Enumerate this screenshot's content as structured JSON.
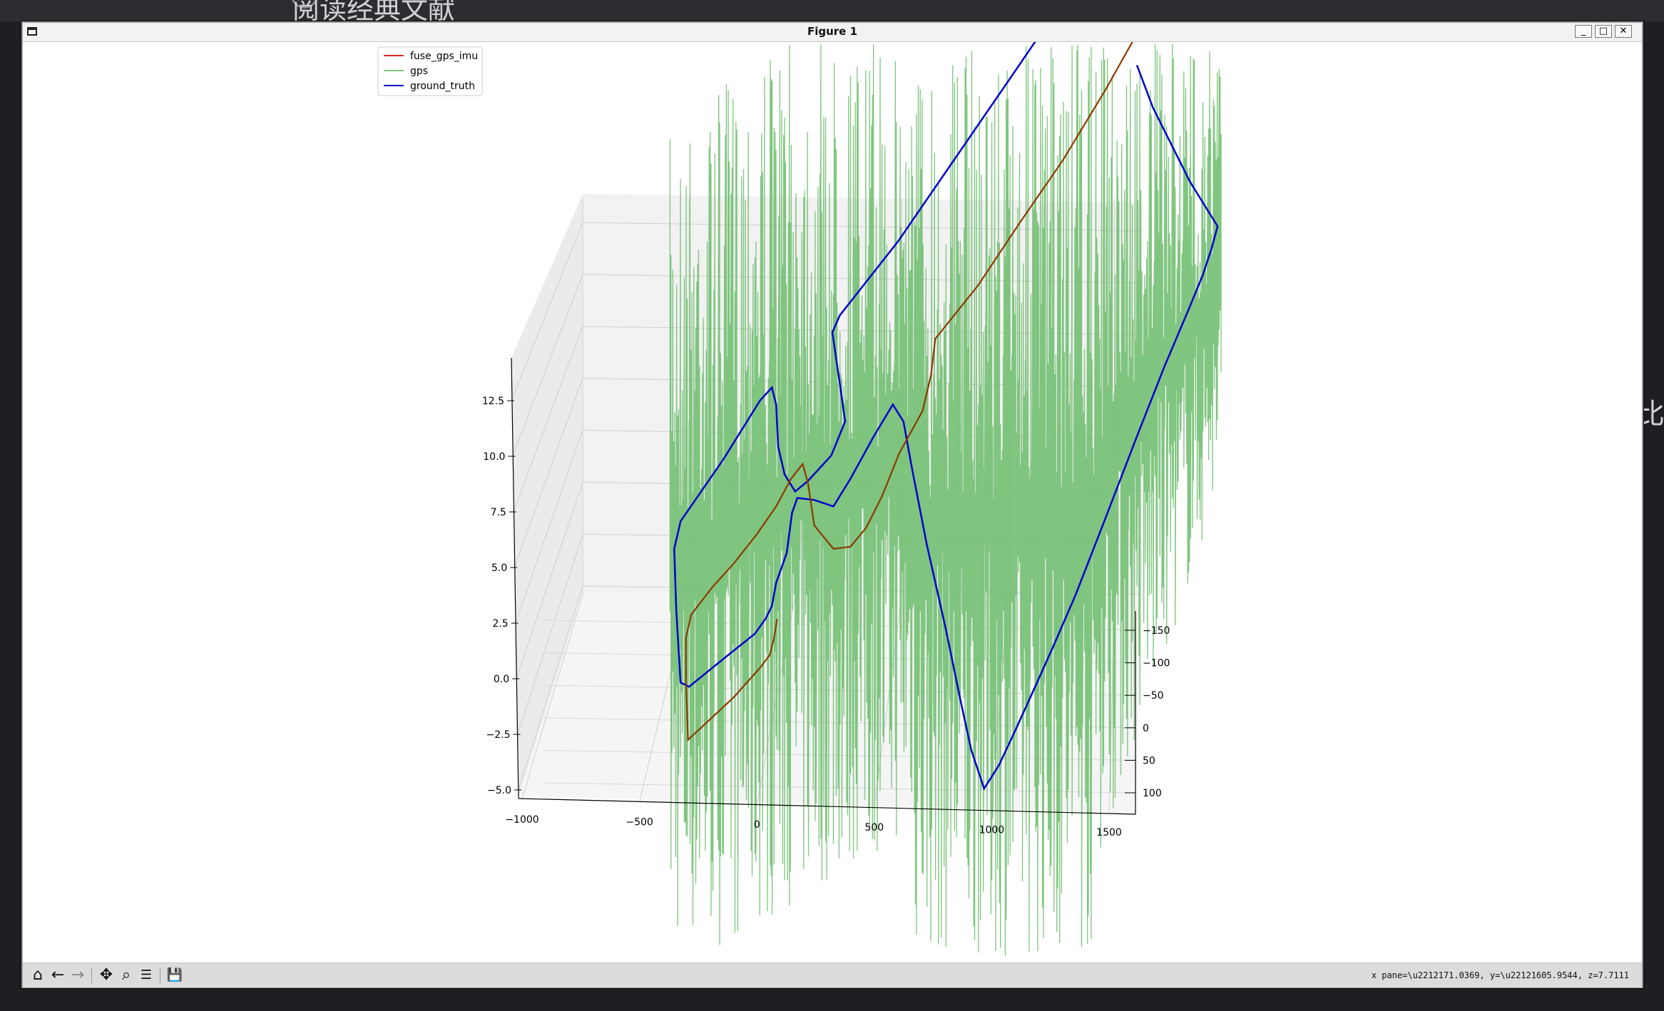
{
  "window": {
    "title": "Figure 1",
    "minimize_label": "_",
    "maximize_label": "□",
    "close_label": "✕"
  },
  "background": {
    "heading_text": "阅读经典文献",
    "side_text": "比"
  },
  "toolbar": {
    "home_icon": "⌂",
    "back_icon": "←",
    "forward_icon": "→",
    "pan_icon": "✥",
    "zoom_icon": "⌕",
    "config_icon": "☰",
    "save_icon": "💾",
    "coords_text": "x pane=\\u2212171.0369, y=\\u22121605.9544, z=7.7111"
  },
  "chart_data": {
    "type": "line",
    "projection": "3d",
    "legend": {
      "placement": "top-left",
      "entries": [
        {
          "name": "fuse_gps_imu",
          "color": "#d62728"
        },
        {
          "name": "gps",
          "color": "#4caf50"
        },
        {
          "name": "ground_truth",
          "color": "#0000cc"
        }
      ]
    },
    "axes": {
      "x_ticks": [
        "−1000",
        "−500",
        "0",
        "500",
        "1000",
        "1500"
      ],
      "y_ticks": [
        "−150",
        "−100",
        "−50",
        "0",
        "50",
        "100"
      ],
      "z_ticks": [
        "−5.0",
        "−2.5",
        "0.0",
        "2.5",
        "5.0",
        "7.5",
        "10.0",
        "12.5"
      ],
      "xlim": [
        -1000,
        1500
      ],
      "ylim": [
        -150,
        100
      ],
      "zlim": [
        -5,
        12.5
      ],
      "grid": true
    },
    "series": [
      {
        "name": "ground_truth",
        "color": "#0000cc",
        "path": [
          [
            1068,
            -180
          ],
          [
            1000,
            0
          ],
          [
            955,
            66
          ],
          [
            845,
            226
          ],
          [
            790,
            296
          ],
          [
            783,
            312
          ],
          [
            790,
            360
          ],
          [
            795,
            396
          ],
          [
            782,
            428
          ],
          [
            760,
            452
          ],
          [
            748,
            462
          ],
          [
            738,
            446
          ],
          [
            732,
            420
          ],
          [
            730,
            380
          ],
          [
            726,
            364
          ],
          [
            715,
            376
          ],
          [
            680,
            432
          ],
          [
            640,
            490
          ],
          [
            634,
            516
          ],
          [
            636,
            576
          ],
          [
            640,
            642
          ],
          [
            648,
            646
          ],
          [
            680,
            620
          ],
          [
            710,
            596
          ],
          [
            720,
            582
          ],
          [
            726,
            570
          ],
          [
            730,
            548
          ],
          [
            740,
            520
          ],
          [
            745,
            482
          ],
          [
            750,
            468
          ],
          [
            766,
            470
          ],
          [
            784,
            476
          ],
          [
            800,
            450
          ],
          [
            822,
            410
          ],
          [
            840,
            380
          ],
          [
            850,
            396
          ],
          [
            858,
            440
          ],
          [
            872,
            512
          ],
          [
            890,
            592
          ],
          [
            904,
            660
          ],
          [
            914,
            706
          ],
          [
            926,
            742
          ],
          [
            940,
            720
          ],
          [
            955,
            688
          ],
          [
            975,
            644
          ],
          [
            992,
            606
          ],
          [
            1012,
            560
          ],
          [
            1040,
            488
          ],
          [
            1070,
            410
          ],
          [
            1096,
            344
          ],
          [
            1118,
            292
          ],
          [
            1132,
            258
          ],
          [
            1140,
            234
          ],
          [
            1146,
            212
          ],
          [
            1120,
            170
          ],
          [
            1085,
            100
          ],
          [
            1070,
            60
          ]
        ]
      },
      {
        "name": "fuse_gps_imu",
        "color": "#d62728",
        "path": [
          [
            1068,
            34
          ],
          [
            1040,
            84
          ],
          [
            1000,
            150
          ],
          [
            960,
            208
          ],
          [
            920,
            268
          ],
          [
            880,
            318
          ],
          [
            876,
            352
          ],
          [
            868,
            386
          ],
          [
            846,
            426
          ],
          [
            830,
            466
          ],
          [
            815,
            496
          ],
          [
            800,
            514
          ],
          [
            784,
            516
          ],
          [
            766,
            494
          ],
          [
            760,
            454
          ],
          [
            755,
            436
          ],
          [
            744,
            450
          ],
          [
            730,
            476
          ],
          [
            712,
            502
          ],
          [
            690,
            530
          ],
          [
            670,
            552
          ],
          [
            650,
            578
          ],
          [
            645,
            600
          ],
          [
            645,
            640
          ],
          [
            647,
            696
          ],
          [
            660,
            684
          ],
          [
            690,
            656
          ],
          [
            715,
            628
          ],
          [
            724,
            616
          ],
          [
            728,
            600
          ],
          [
            731,
            582
          ]
        ]
      }
    ]
  }
}
